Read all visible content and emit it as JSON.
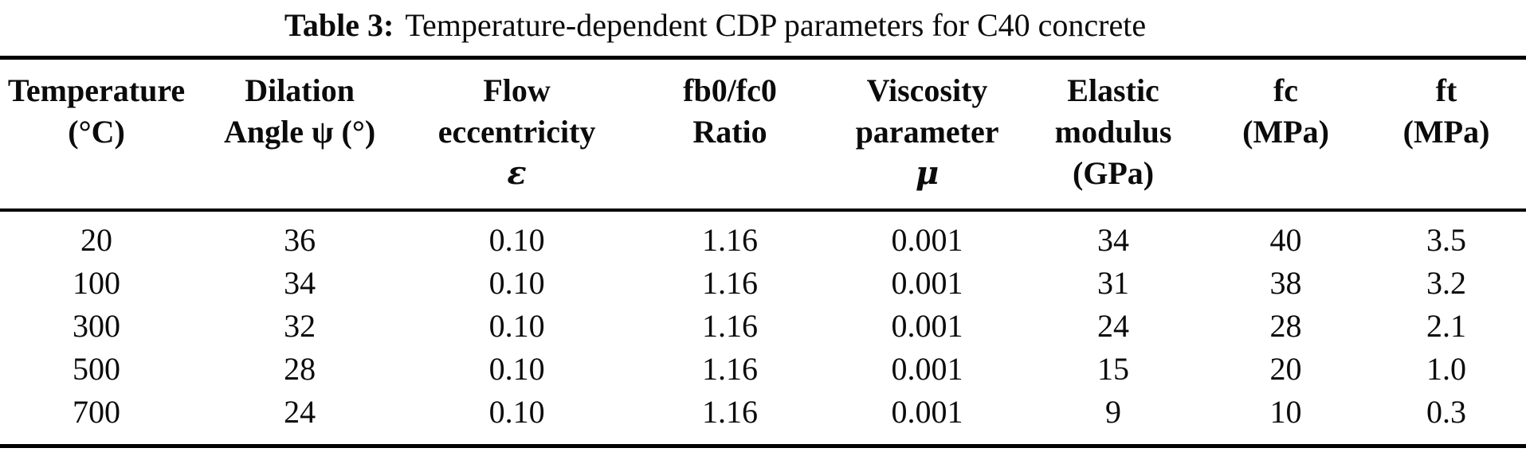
{
  "caption": {
    "label": "Table 3:",
    "text": "Temperature-dependent CDP parameters for C40 concrete"
  },
  "table": {
    "columns": [
      {
        "line1": "Temperature",
        "line2": "(°C)",
        "line3": ""
      },
      {
        "line1": "Dilation",
        "line2": "Angle ψ (°)",
        "line3": ""
      },
      {
        "line1": "Flow",
        "line2": "eccentricity",
        "line3": "ε"
      },
      {
        "line1": "fb0/fc0",
        "line2": "Ratio",
        "line3": ""
      },
      {
        "line1": "Viscosity",
        "line2": "parameter",
        "line3": "μ"
      },
      {
        "line1": "Elastic",
        "line2": "modulus",
        "line3": "(GPa)"
      },
      {
        "line1": "fc",
        "line2": "(MPa)",
        "line3": ""
      },
      {
        "line1": "ft",
        "line2": "(MPa)",
        "line3": ""
      }
    ],
    "rows": [
      [
        "20",
        "36",
        "0.10",
        "1.16",
        "0.001",
        "34",
        "40",
        "3.5"
      ],
      [
        "100",
        "34",
        "0.10",
        "1.16",
        "0.001",
        "31",
        "38",
        "3.2"
      ],
      [
        "300",
        "32",
        "0.10",
        "1.16",
        "0.001",
        "24",
        "28",
        "2.1"
      ],
      [
        "500",
        "28",
        "0.10",
        "1.16",
        "0.001",
        "15",
        "20",
        "1.0"
      ],
      [
        "700",
        "24",
        "0.10",
        "1.16",
        "0.001",
        "9",
        "10",
        "0.3"
      ]
    ]
  },
  "colors": {
    "text": "#0b0b0b",
    "rule": "#000000",
    "background": "#ffffff"
  }
}
